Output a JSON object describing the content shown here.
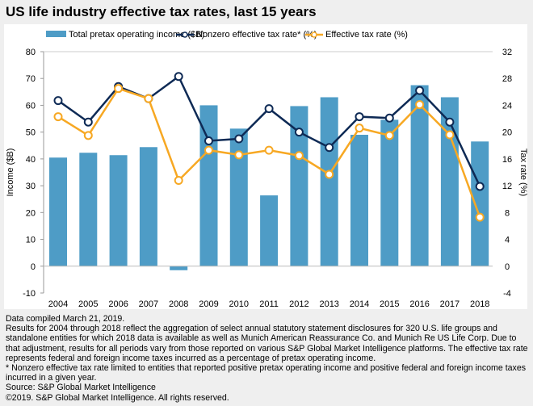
{
  "title": "US life industry effective tax rates, last 15 years",
  "chart_data": {
    "type": "bar+line",
    "categories": [
      "2004",
      "2005",
      "2006",
      "2007",
      "2008",
      "2009",
      "2010",
      "2011",
      "2012",
      "2013",
      "2014",
      "2015",
      "2016",
      "2017",
      "2018"
    ],
    "series": [
      {
        "name": "Total pretax operating income ($B)",
        "type": "bar",
        "axis": "left",
        "color": "#4e9cc6",
        "values": [
          40.5,
          42.3,
          41.4,
          44.4,
          -1.5,
          60,
          51.3,
          26.4,
          59.7,
          63,
          49,
          54.6,
          67.5,
          63,
          46.5
        ]
      },
      {
        "name": "Nonzero effective tax rate* (%)",
        "type": "line",
        "axis": "right",
        "color": "#0e2a55",
        "values": [
          24.7,
          21.5,
          26.8,
          25,
          28.3,
          18.7,
          19,
          23.5,
          20,
          17.7,
          22.3,
          22.1,
          26.2,
          21.5,
          11.9
        ]
      },
      {
        "name": "Effective tax rate (%)",
        "type": "line",
        "axis": "right",
        "color": "#f7a823",
        "values": [
          22.3,
          19.5,
          26.5,
          25,
          12.8,
          17.3,
          16.6,
          17.3,
          16.5,
          13.7,
          20.6,
          19.5,
          24.1,
          19.6,
          7.3
        ]
      }
    ],
    "ylabel": "Income ($B)",
    "y2label": "Tax rate (%)",
    "ylim": [
      -10,
      80
    ],
    "yticks": [
      -10,
      0,
      10,
      20,
      30,
      40,
      50,
      60,
      70,
      80
    ],
    "y2lim": [
      -4,
      32
    ],
    "y2ticks": [
      -4,
      0,
      4,
      8,
      12,
      16,
      20,
      24,
      28,
      32
    ],
    "grid": false,
    "legend": "top"
  },
  "notes": [
    "Data compiled March 21, 2019.",
    "Results for 2004 through 2018 reflect the aggregation of select annual statutory statement disclosures for 320 U.S. life groups and standalone entities for which 2018 data is available as well as Munich American Reassurance Co. and Munich Re US Life Corp. Due to that adjustment, results for all periods vary from those reported on various S&P Global Market Intelligence platforms. The effective tax rate represents federal and foreign income taxes incurred as a percentage of pretax operating income.",
    "* Nonzero effective tax rate limited to entities that reported positive pretax operating income and positive federal and foreign income taxes incurred in a given year.",
    "Source: S&P Global Market Intelligence",
    "©2019. S&P Global Market Intelligence. All rights reserved."
  ]
}
